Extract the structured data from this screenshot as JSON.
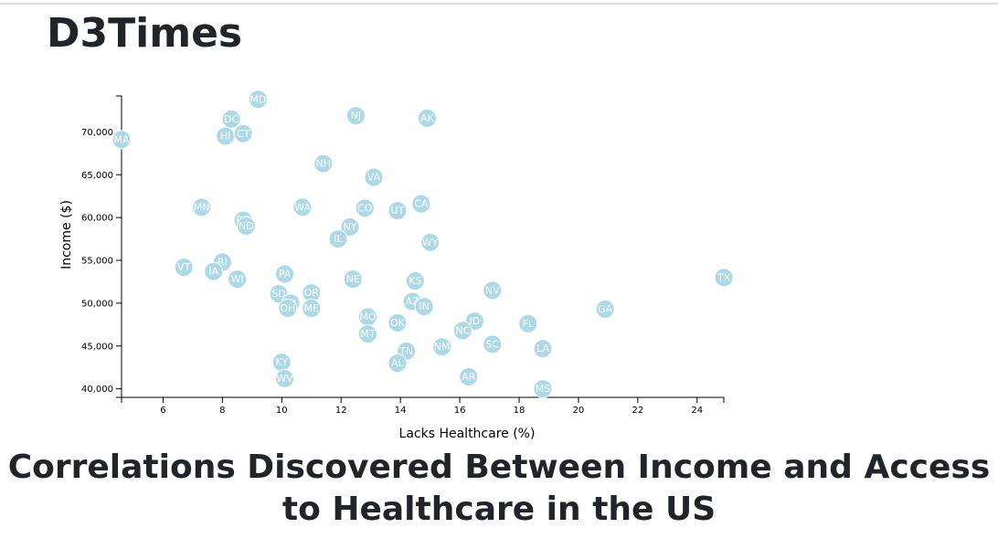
{
  "page": {
    "site_title": "D3Times",
    "headline": "Correlations Discovered Between Income and Access to Healthcare in the US"
  },
  "chart_data": {
    "type": "scatter",
    "title": "",
    "xlabel": "Lacks Healthcare (%)",
    "ylabel": "Income ($)",
    "xlim": [
      4.6,
      24.9
    ],
    "ylim": [
      39000,
      74200
    ],
    "x_ticks": [
      6,
      8,
      10,
      12,
      14,
      16,
      18,
      20,
      22,
      24
    ],
    "y_ticks": [
      40000,
      45000,
      50000,
      55000,
      60000,
      65000,
      70000
    ],
    "y_tick_labels": [
      "40,000",
      "45,000",
      "50,000",
      "55,000",
      "60,000",
      "65,000",
      "70,000"
    ],
    "grid": false,
    "point_color": "#add8e6",
    "points": [
      {
        "label": "MD",
        "x": 9.2,
        "y": 73800
      },
      {
        "label": "DC",
        "x": 8.3,
        "y": 71500
      },
      {
        "label": "NJ",
        "x": 12.5,
        "y": 71900
      },
      {
        "label": "AK",
        "x": 14.9,
        "y": 71600
      },
      {
        "label": "HI",
        "x": 8.1,
        "y": 69500
      },
      {
        "label": "CT",
        "x": 8.7,
        "y": 69800
      },
      {
        "label": "MA",
        "x": 4.6,
        "y": 69100
      },
      {
        "label": "NH",
        "x": 11.4,
        "y": 66300
      },
      {
        "label": "VA",
        "x": 13.1,
        "y": 64700
      },
      {
        "label": "MN",
        "x": 7.3,
        "y": 61200
      },
      {
        "label": "WA",
        "x": 10.7,
        "y": 61200
      },
      {
        "label": "CO",
        "x": 12.8,
        "y": 61100
      },
      {
        "label": "UT",
        "x": 13.9,
        "y": 60800
      },
      {
        "label": "CA",
        "x": 14.7,
        "y": 61600
      },
      {
        "label": "DE",
        "x": 8.7,
        "y": 59700
      },
      {
        "label": "ND",
        "x": 8.8,
        "y": 59000
      },
      {
        "label": "NY",
        "x": 12.3,
        "y": 58900
      },
      {
        "label": "IL",
        "x": 11.9,
        "y": 57500
      },
      {
        "label": "WY",
        "x": 15.0,
        "y": 57100
      },
      {
        "label": "VT",
        "x": 6.7,
        "y": 54200
      },
      {
        "label": "RI",
        "x": 8.0,
        "y": 54800
      },
      {
        "label": "IA",
        "x": 7.7,
        "y": 53700
      },
      {
        "label": "WI",
        "x": 8.5,
        "y": 52800
      },
      {
        "label": "PA",
        "x": 10.1,
        "y": 53400
      },
      {
        "label": "NE",
        "x": 12.4,
        "y": 52800
      },
      {
        "label": "KS",
        "x": 14.5,
        "y": 52600
      },
      {
        "label": "TX",
        "x": 24.9,
        "y": 53000
      },
      {
        "label": "SD",
        "x": 9.9,
        "y": 51100
      },
      {
        "label": "OR",
        "x": 11.0,
        "y": 51200
      },
      {
        "label": "MI",
        "x": 10.3,
        "y": 50000
      },
      {
        "label": "OH",
        "x": 10.2,
        "y": 49400
      },
      {
        "label": "ME",
        "x": 11.0,
        "y": 49400
      },
      {
        "label": "AZ",
        "x": 14.4,
        "y": 50200
      },
      {
        "label": "IN",
        "x": 14.8,
        "y": 49600
      },
      {
        "label": "NV",
        "x": 17.1,
        "y": 51500
      },
      {
        "label": "GA",
        "x": 20.9,
        "y": 49300
      },
      {
        "label": "MO",
        "x": 12.9,
        "y": 48400
      },
      {
        "label": "OK",
        "x": 13.9,
        "y": 47700
      },
      {
        "label": "ID",
        "x": 16.5,
        "y": 47900
      },
      {
        "label": "NC",
        "x": 16.1,
        "y": 46800
      },
      {
        "label": "FL",
        "x": 18.3,
        "y": 47600
      },
      {
        "label": "MT",
        "x": 12.9,
        "y": 46400
      },
      {
        "label": "TN",
        "x": 14.2,
        "y": 44400
      },
      {
        "label": "NM",
        "x": 15.4,
        "y": 44900
      },
      {
        "label": "SC",
        "x": 17.1,
        "y": 45200
      },
      {
        "label": "LA",
        "x": 18.8,
        "y": 44700
      },
      {
        "label": "AL",
        "x": 13.9,
        "y": 43000
      },
      {
        "label": "KY",
        "x": 10.0,
        "y": 43100
      },
      {
        "label": "WV",
        "x": 10.1,
        "y": 41200
      },
      {
        "label": "AR",
        "x": 16.3,
        "y": 41400
      },
      {
        "label": "MS",
        "x": 18.8,
        "y": 40000
      }
    ]
  }
}
